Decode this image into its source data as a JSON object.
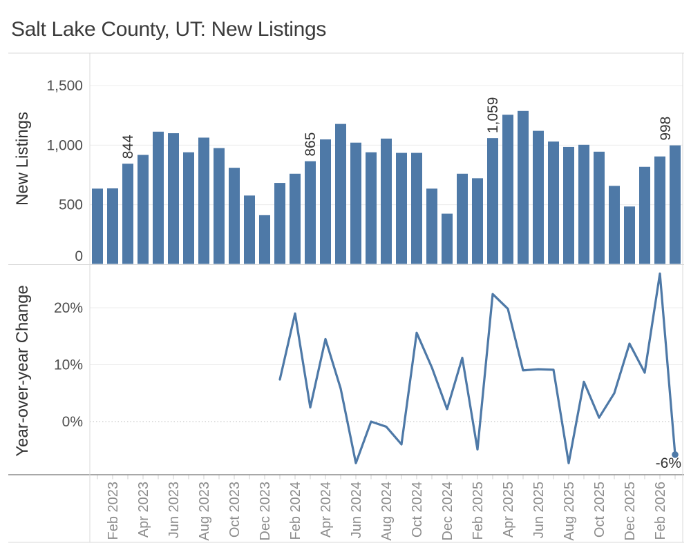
{
  "title": "Salt Lake County, UT: New Listings",
  "colors": {
    "bar": "#4e79a7",
    "line": "#4e79a7",
    "grid": "#ececec",
    "zero_line": "#bdbdbd",
    "pane_border": "#d8d8d8",
    "axis_line": "#757575",
    "month_tick": "#cfcfcf",
    "ytick_label": "#4e4e4e",
    "month_label": "#8c8c8c",
    "annotation": "#333333",
    "axis_title": "#333333",
    "title_color": "#3b3b3b"
  },
  "x_axis": {
    "labels": [
      "Feb 2023",
      "Apr 2023",
      "Jun 2023",
      "Aug 2023",
      "Oct 2023",
      "Dec 2023",
      "Feb 2024",
      "Apr 2024",
      "Jun 2024",
      "Aug 2024",
      "Oct 2024",
      "Dec 2024",
      "Feb 2025",
      "Apr 2025",
      "Jun 2025",
      "Aug 2025",
      "Oct 2025",
      "Dec 2025",
      "Feb 2026"
    ]
  },
  "chart_data": [
    {
      "type": "bar",
      "title": "New Listings",
      "ylabel": "New Listings",
      "categories": [
        "Jan 2023",
        "Feb 2023",
        "Mar 2023",
        "Apr 2023",
        "May 2023",
        "Jun 2023",
        "Jul 2023",
        "Aug 2023",
        "Sep 2023",
        "Oct 2023",
        "Nov 2023",
        "Dec 2023",
        "Jan 2024",
        "Feb 2024",
        "Mar 2024",
        "Apr 2024",
        "May 2024",
        "Jun 2024",
        "Jul 2024",
        "Aug 2024",
        "Sep 2024",
        "Oct 2024",
        "Nov 2024",
        "Dec 2024",
        "Jan 2025",
        "Feb 2025",
        "Mar 2025",
        "Apr 2025",
        "May 2025",
        "Jun 2025",
        "Jul 2025",
        "Aug 2025",
        "Sep 2025",
        "Oct 2025",
        "Nov 2025",
        "Dec 2025",
        "Jan 2026",
        "Feb 2026",
        "Mar 2026"
      ],
      "values": [
        635,
        637,
        844,
        918,
        1113,
        1100,
        940,
        1063,
        975,
        810,
        577,
        412,
        683,
        760,
        865,
        1048,
        1178,
        1021,
        940,
        1055,
        935,
        935,
        635,
        425,
        760,
        722,
        1059,
        1255,
        1287,
        1120,
        1030,
        985,
        1003,
        945,
        658,
        485,
        818,
        905,
        998
      ],
      "ylim": [
        0,
        1772
      ],
      "yticks": [
        0,
        500,
        1000,
        1500
      ],
      "ytick_labels": [
        "0",
        "500",
        "1,000",
        "1,500"
      ],
      "grid": true,
      "annotations": [
        {
          "category": "Mar 2023",
          "label": "844"
        },
        {
          "category": "Mar 2024",
          "label": "865"
        },
        {
          "category": "Mar 2025",
          "label": "1,059"
        },
        {
          "category": "Mar 2026",
          "label": "998"
        }
      ]
    },
    {
      "type": "line",
      "title": "Year-over-year Change",
      "ylabel": "Year-over-year Change",
      "x": [
        "Jan 2024",
        "Feb 2024",
        "Mar 2024",
        "Apr 2024",
        "May 2024",
        "Jun 2024",
        "Jul 2024",
        "Aug 2024",
        "Sep 2024",
        "Oct 2024",
        "Nov 2024",
        "Dec 2024",
        "Jan 2025",
        "Feb 2025",
        "Mar 2025",
        "Apr 2025",
        "May 2025",
        "Jun 2025",
        "Jul 2025",
        "Aug 2025",
        "Sep 2025",
        "Oct 2025",
        "Nov 2025",
        "Dec 2025",
        "Jan 2026",
        "Feb 2026",
        "Mar 2026"
      ],
      "values": [
        7.4,
        19.0,
        2.5,
        14.5,
        5.8,
        -7.3,
        0.0,
        -0.9,
        -4.0,
        15.6,
        9.5,
        2.2,
        11.2,
        -4.9,
        22.4,
        19.8,
        9.0,
        9.2,
        9.1,
        -7.3,
        7.0,
        0.7,
        5.0,
        13.7,
        8.6,
        26.0,
        -5.8
      ],
      "ylim": [
        -9.3,
        27.4
      ],
      "yticks": [
        0,
        10,
        20
      ],
      "ytick_labels": [
        "0%",
        "10%",
        "20%"
      ],
      "grid": true,
      "zero_line_style": "dotted",
      "end_marker": true,
      "end_label": "-6%"
    }
  ]
}
